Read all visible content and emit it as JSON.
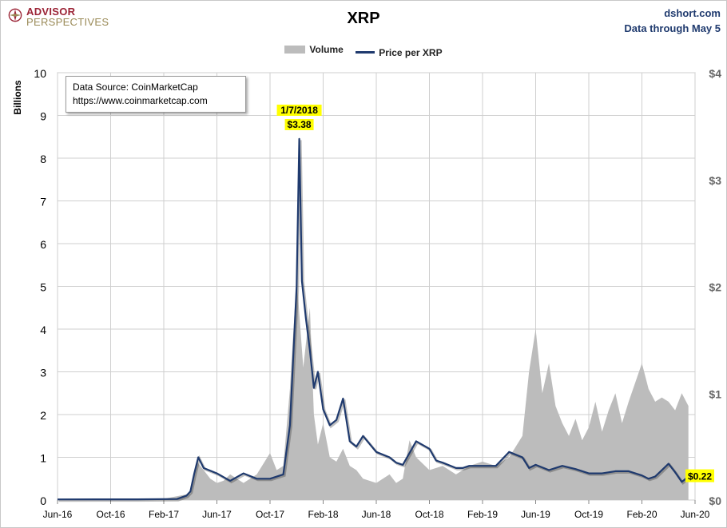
{
  "header": {
    "logo_line1": "ADVISOR",
    "logo_line2": "PERSPECTIVES",
    "title": "XRP",
    "source_site": "dshort.com",
    "data_through": "Data through May 5"
  },
  "legend": {
    "volume": "Volume",
    "price": "Price per XRP"
  },
  "note": {
    "line1": "Data Source: CoinMarketCap",
    "line2": "https://www.coinmarketcap.com"
  },
  "annotations": {
    "peak_date": "1/7/2018",
    "peak_price": "$3.38",
    "last_price": "$0.22"
  },
  "colors": {
    "volume": "#bcbcbc",
    "price": "#1f3a6e",
    "highlight": "#ffff00",
    "right_axis": "#666666"
  },
  "chart_data": {
    "type": "area+line",
    "title": "XRP",
    "ylabel": "Billions",
    "ylim": [
      0,
      10
    ],
    "y2lim": [
      0,
      4
    ],
    "yticks": [
      "0",
      "1",
      "2",
      "3",
      "4",
      "5",
      "6",
      "7",
      "8",
      "9",
      "10"
    ],
    "y2ticks": [
      "$0",
      "$1",
      "$2",
      "$3",
      "$4"
    ],
    "xticks": [
      "Jun-16",
      "Oct-16",
      "Feb-17",
      "Jun-17",
      "Oct-17",
      "Feb-18",
      "Jun-18",
      "Oct-18",
      "Feb-19",
      "Jun-19",
      "Oct-19",
      "Feb-20",
      "Jun-20"
    ],
    "x_domain_months": [
      0,
      48
    ],
    "series": [
      {
        "name": "Volume",
        "axis": "left",
        "unit": "billions USD",
        "x_months": [
          0,
          2,
          4,
          6,
          8,
          10,
          10.5,
          11,
          11.5,
          12,
          12.5,
          13,
          13.5,
          14,
          15,
          16,
          16.5,
          17,
          17.5,
          18,
          18.5,
          19,
          19.3,
          19.6,
          20,
          20.5,
          21,
          21.5,
          22,
          22.5,
          23,
          24,
          24.5,
          25,
          25.5,
          26,
          26.5,
          27,
          28,
          29,
          30,
          31,
          32,
          33,
          34,
          35,
          35.5,
          36,
          36.5,
          37,
          37.5,
          38,
          38.5,
          39,
          39.5,
          40,
          40.5,
          41,
          41.5,
          42,
          42.5,
          43,
          44,
          44.5,
          45,
          45.5,
          46,
          46.5,
          47,
          47.5
        ],
        "values": [
          0.01,
          0.01,
          0.01,
          0.02,
          0.03,
          0.15,
          0.9,
          0.7,
          0.5,
          0.4,
          0.45,
          0.6,
          0.5,
          0.4,
          0.6,
          1.1,
          0.7,
          0.8,
          2.6,
          5.2,
          3.1,
          4.5,
          2.0,
          1.3,
          1.8,
          1.0,
          0.9,
          1.2,
          0.8,
          0.7,
          0.5,
          0.4,
          0.5,
          0.6,
          0.4,
          0.5,
          1.4,
          1.0,
          0.7,
          0.8,
          0.6,
          0.8,
          0.9,
          0.8,
          1.0,
          1.5,
          3.0,
          4.0,
          2.5,
          3.2,
          2.2,
          1.8,
          1.5,
          1.9,
          1.4,
          1.7,
          2.3,
          1.6,
          2.1,
          2.5,
          1.8,
          2.3,
          3.2,
          2.6,
          2.3,
          2.4,
          2.3,
          2.1,
          2.5,
          2.2
        ]
      },
      {
        "name": "Price per XRP",
        "axis": "right",
        "unit": "USD",
        "x_months": [
          0,
          3,
          6,
          9,
          9.7,
          10,
          10.3,
          10.6,
          11,
          12,
          13,
          14,
          15,
          16,
          17,
          17.5,
          18,
          18.2,
          18.4,
          18.7,
          19,
          19.3,
          19.6,
          20,
          20.5,
          21,
          21.5,
          22,
          22.5,
          23,
          24,
          25,
          25.5,
          26,
          27,
          28,
          28.5,
          29,
          30,
          30.5,
          31,
          32,
          33,
          34,
          35,
          35.5,
          36,
          37,
          38,
          39,
          40,
          41,
          42,
          43,
          44,
          44.5,
          45,
          46,
          46.5,
          47,
          47.5
        ],
        "values": [
          0.006,
          0.007,
          0.007,
          0.01,
          0.04,
          0.08,
          0.25,
          0.4,
          0.3,
          0.25,
          0.18,
          0.25,
          0.2,
          0.2,
          0.24,
          0.7,
          2.0,
          3.38,
          2.05,
          1.7,
          1.4,
          1.05,
          1.2,
          0.85,
          0.7,
          0.75,
          0.95,
          0.55,
          0.5,
          0.6,
          0.45,
          0.4,
          0.35,
          0.33,
          0.55,
          0.48,
          0.37,
          0.35,
          0.3,
          0.3,
          0.32,
          0.32,
          0.32,
          0.45,
          0.4,
          0.3,
          0.33,
          0.28,
          0.32,
          0.29,
          0.25,
          0.25,
          0.27,
          0.27,
          0.23,
          0.2,
          0.22,
          0.34,
          0.26,
          0.17,
          0.22
        ]
      }
    ]
  }
}
